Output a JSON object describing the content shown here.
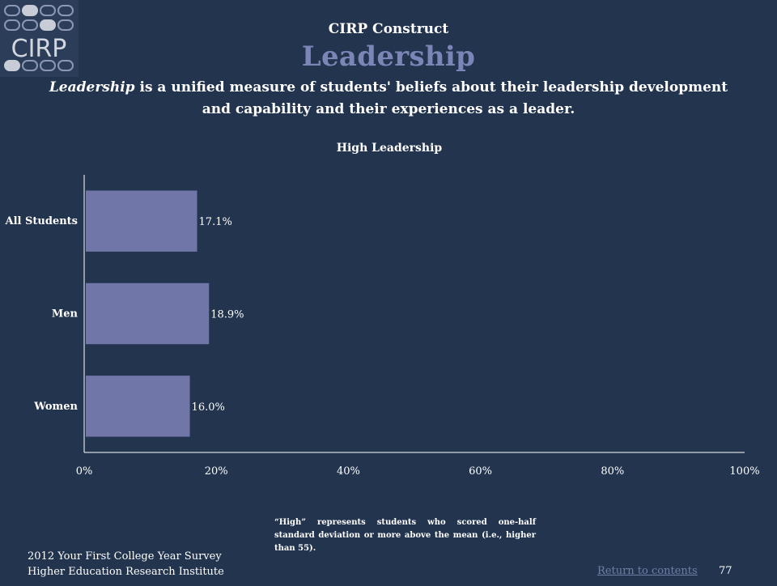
{
  "logo": {
    "text": "CIRP"
  },
  "header": {
    "construct": "CIRP Construct",
    "title": "Leadership",
    "description_term": "Leadership",
    "description_rest": " is a unified measure of students' beliefs about their leadership development and capability and their experiences as a leader."
  },
  "chart_data": {
    "type": "bar",
    "orientation": "horizontal",
    "title": "High Leadership",
    "categories": [
      "All Students",
      "Men",
      "Women"
    ],
    "values": [
      17.1,
      18.9,
      16.0
    ],
    "value_labels": [
      "17.1%",
      "18.9%",
      "16.0%"
    ],
    "xlim": [
      0,
      100
    ],
    "xticks": [
      "0%",
      "20%",
      "40%",
      "60%",
      "80%",
      "100%"
    ],
    "xtick_values": [
      0,
      20,
      40,
      60,
      80,
      100
    ],
    "bar_color": "#7076a8",
    "grid": false
  },
  "footnote": "“High” represents students who scored one-half standard deviation or more above the mean (i.e., higher than 55).",
  "footer": {
    "survey": "2012 Your First College Year Survey",
    "institute": "Higher Education Research Institute",
    "return_link": "Return to contents",
    "page_number": "77"
  }
}
